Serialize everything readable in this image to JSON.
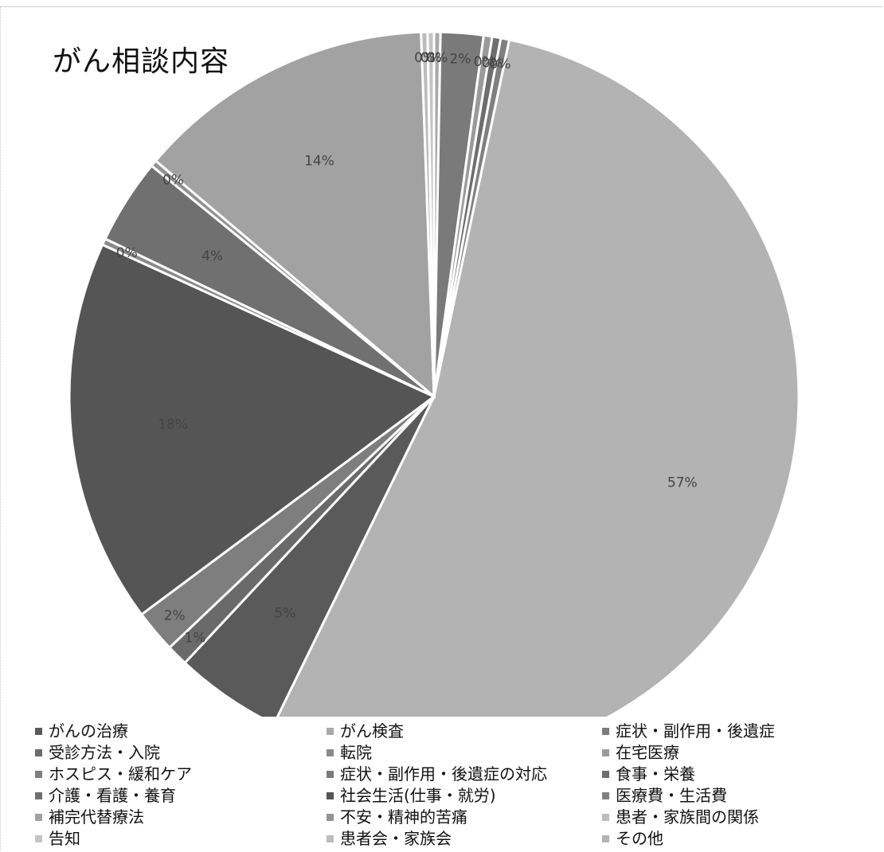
{
  "chart_data": {
    "type": "pie",
    "title": "がん相談内容",
    "start_angle_deg": 0,
    "direction": "clockwise",
    "slices": [
      {
        "label": "がん検査",
        "value": 0.3,
        "data_label": "0%",
        "color": "#a9a9a9"
      },
      {
        "label": "症状・副作用・後遺症",
        "value": 2,
        "data_label": "2%",
        "color": "#7a7a7a"
      },
      {
        "label": "在宅医療",
        "value": 0.4,
        "data_label": "0%",
        "color": "#9a9a9a"
      },
      {
        "label": "食事・栄養",
        "value": 0.4,
        "data_label": "0%",
        "color": "#6e6e6e"
      },
      {
        "label": "医療費・生活費",
        "value": 0.4,
        "data_label": "0%",
        "color": "#808080"
      },
      {
        "label": "その他",
        "value": 57,
        "data_label": "57%",
        "color": "#b3b3b3"
      },
      {
        "label": "がんの治療",
        "value": 5,
        "data_label": "5%",
        "color": "#5a5a5a"
      },
      {
        "label": "受診方法・入院",
        "value": 1,
        "data_label": "1%",
        "color": "#6a6a6a"
      },
      {
        "label": "ホスピス・緩和ケア",
        "value": 2,
        "data_label": "2%",
        "color": "#7e7e7e"
      },
      {
        "label": "社会生活(仕事・就労)",
        "value": 18,
        "data_label": "18%",
        "color": "#555555"
      },
      {
        "label": "転院",
        "value": 0.3,
        "data_label": "0%",
        "color": "#8a8a8a"
      },
      {
        "label": "介護・看護・養育",
        "value": 4,
        "data_label": "4%",
        "color": "#707070"
      },
      {
        "label": "不安・精神的苦痛",
        "value": 0.3,
        "data_label": "0%",
        "color": "#929292"
      },
      {
        "label": "補完代替療法",
        "value": 14,
        "data_label": "14%",
        "color": "#a2a2a2"
      },
      {
        "label": "患者会・家族会",
        "value": 0.3,
        "data_label": "0%",
        "color": "#bcbcbc"
      },
      {
        "label": "告知",
        "value": 0.3,
        "data_label": "0%",
        "color": "#c4c4c4"
      }
    ],
    "legend": {
      "placement": "bottom",
      "columns": [
        [
          {
            "label": "がんの治療",
            "color": "#5a5a5a"
          },
          {
            "label": "受診方法・入院",
            "color": "#6a6a6a"
          },
          {
            "label": "ホスピス・緩和ケア",
            "color": "#7e7e7e"
          },
          {
            "label": "介護・看護・養育",
            "color": "#707070"
          },
          {
            "label": "補完代替療法",
            "color": "#a2a2a2"
          },
          {
            "label": "告知",
            "color": "#c4c4c4"
          }
        ],
        [
          {
            "label": "がん検査",
            "color": "#a9a9a9"
          },
          {
            "label": "転院",
            "color": "#8a8a8a"
          },
          {
            "label": "症状・副作用・後遺症の対応",
            "color": "#7a7a7a"
          },
          {
            "label": "社会生活(仕事・就労)",
            "color": "#555555"
          },
          {
            "label": "不安・精神的苦痛",
            "color": "#929292"
          },
          {
            "label": "患者会・家族会",
            "color": "#bcbcbc"
          }
        ],
        [
          {
            "label": "症状・副作用・後遺症",
            "color": "#7a7a7a"
          },
          {
            "label": "在宅医療",
            "color": "#9a9a9a"
          },
          {
            "label": "食事・栄養",
            "color": "#6e6e6e"
          },
          {
            "label": "医療費・生活費",
            "color": "#808080"
          },
          {
            "label": "患者・家族間の関係",
            "color": "#bdbdbd"
          },
          {
            "label": "その他",
            "color": "#b3b3b3"
          }
        ]
      ]
    }
  }
}
